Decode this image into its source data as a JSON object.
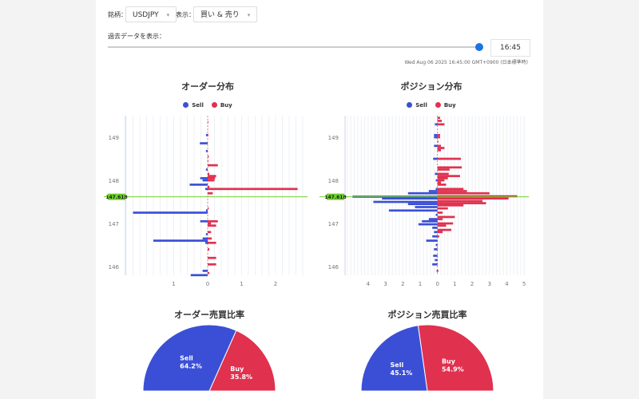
{
  "controls": {
    "symbol_label": "銘柄：",
    "symbol_value": "USDJPY",
    "display_label": "表示：",
    "display_value": "買い & 売り",
    "history_label": "過去データを表示：",
    "slider_position_fraction": 1.0,
    "time_value": "16:45",
    "timestamp": "Wed Aug 06 2025 16:45:00 GMT+0900 (日本標準時)"
  },
  "colors": {
    "sell": "#3b4fd6",
    "buy": "#e0314f",
    "current_price": "#6fd12a",
    "accent": "#1a73e8"
  },
  "chart_data": [
    {
      "type": "bar",
      "orientation": "horizontal",
      "title": "オーダー分布",
      "legend": [
        "Sell",
        "Buy"
      ],
      "legend_placement": "top",
      "current_price": "147.618",
      "y_ticks": [
        "149",
        "148",
        "147",
        "146"
      ],
      "x_ticks": [
        "1",
        "0",
        "1",
        "2"
      ],
      "x_tick_values": [
        -1,
        0,
        1,
        2
      ],
      "xlim": [
        -2.45,
        2.95
      ],
      "ylim": [
        145.8,
        149.5
      ],
      "series": [
        {
          "name": "Sell",
          "points": [
            [
              149.05,
              0.05
            ],
            [
              148.86,
              0.23
            ],
            [
              148.68,
              0.05
            ],
            [
              148.25,
              0.05
            ],
            [
              148.05,
              0.22
            ],
            [
              148.0,
              0.15
            ],
            [
              147.9,
              0.53
            ],
            [
              147.8,
              0.07
            ],
            [
              147.3,
              0.05
            ],
            [
              147.25,
              2.2
            ],
            [
              147.05,
              0.22
            ],
            [
              146.75,
              0.05
            ],
            [
              146.65,
              0.15
            ],
            [
              146.6,
              1.6
            ],
            [
              146.55,
              0.07
            ],
            [
              145.9,
              0.15
            ],
            [
              145.8,
              0.5
            ]
          ]
        },
        {
          "name": "Buy",
          "points": [
            [
              149.35,
              0.01
            ],
            [
              149.05,
              0.02
            ],
            [
              148.55,
              0.03
            ],
            [
              148.45,
              0.02
            ],
            [
              148.35,
              0.3
            ],
            [
              148.15,
              0.05
            ],
            [
              148.1,
              0.25
            ],
            [
              148.05,
              0.22
            ],
            [
              148.0,
              0.2
            ],
            [
              147.85,
              0.05
            ],
            [
              147.8,
              2.65
            ],
            [
              147.7,
              0.15
            ],
            [
              147.35,
              0.03
            ],
            [
              147.05,
              0.3
            ],
            [
              147.0,
              0.1
            ],
            [
              146.95,
              0.25
            ],
            [
              146.8,
              0.1
            ],
            [
              146.65,
              0.12
            ],
            [
              146.55,
              0.25
            ],
            [
              146.4,
              0.05
            ],
            [
              146.2,
              0.25
            ],
            [
              146.05,
              0.25
            ],
            [
              145.85,
              0.05
            ]
          ]
        }
      ]
    },
    {
      "type": "bar",
      "orientation": "horizontal",
      "title": "ポジション分布",
      "legend": [
        "Sell",
        "Buy"
      ],
      "legend_placement": "top",
      "current_price": "147.618",
      "y_ticks": [
        "149",
        "148",
        "147",
        "146"
      ],
      "x_ticks": [
        "4",
        "3",
        "2",
        "1",
        "0",
        "1",
        "2",
        "3",
        "4",
        "5"
      ],
      "x_tick_values": [
        -4,
        -3,
        -2,
        -1,
        0,
        1,
        2,
        3,
        4,
        5
      ],
      "xlim": [
        -5.3,
        5.2
      ],
      "ylim": [
        145.8,
        149.5
      ],
      "series": [
        {
          "name": "Sell",
          "points": [
            [
              149.3,
              0.15
            ],
            [
              149.05,
              0.2
            ],
            [
              149.0,
              0.2
            ],
            [
              148.8,
              0.2
            ],
            [
              148.5,
              0.25
            ],
            [
              148.15,
              0.15
            ],
            [
              148.0,
              0.1
            ],
            [
              147.8,
              0.1
            ],
            [
              147.75,
              0.5
            ],
            [
              147.7,
              1.7
            ],
            [
              147.62,
              4.9
            ],
            [
              147.58,
              3.2
            ],
            [
              147.5,
              3.7
            ],
            [
              147.45,
              1.7
            ],
            [
              147.38,
              1.3
            ],
            [
              147.3,
              2.8
            ],
            [
              147.2,
              0.1
            ],
            [
              147.1,
              0.5
            ],
            [
              147.05,
              0.9
            ],
            [
              146.98,
              1.1
            ],
            [
              146.9,
              0.3
            ],
            [
              146.8,
              0.2
            ],
            [
              146.7,
              0.3
            ],
            [
              146.6,
              0.65
            ],
            [
              146.5,
              0.1
            ],
            [
              146.4,
              0.2
            ],
            [
              146.25,
              0.25
            ],
            [
              146.15,
              0.15
            ],
            [
              146.05,
              0.3
            ],
            [
              145.9,
              0.05
            ]
          ]
        },
        {
          "name": "Buy",
          "points": [
            [
              149.45,
              0.15
            ],
            [
              149.38,
              0.25
            ],
            [
              149.3,
              0.4
            ],
            [
              149.05,
              0.15
            ],
            [
              149.0,
              0.15
            ],
            [
              148.9,
              0.05
            ],
            [
              148.8,
              0.2
            ],
            [
              148.75,
              0.4
            ],
            [
              148.7,
              0.2
            ],
            [
              148.5,
              1.35
            ],
            [
              148.3,
              1.4
            ],
            [
              148.25,
              0.7
            ],
            [
              148.15,
              0.65
            ],
            [
              148.1,
              1.3
            ],
            [
              148.05,
              0.6
            ],
            [
              148.0,
              0.4
            ],
            [
              147.95,
              0.2
            ],
            [
              147.9,
              0.5
            ],
            [
              147.8,
              1.5
            ],
            [
              147.75,
              1.7
            ],
            [
              147.7,
              3.0
            ],
            [
              147.63,
              4.6
            ],
            [
              147.58,
              4.1
            ],
            [
              147.52,
              2.6
            ],
            [
              147.47,
              2.8
            ],
            [
              147.42,
              1.5
            ],
            [
              147.35,
              0.6
            ],
            [
              147.25,
              0.3
            ],
            [
              147.15,
              1.0
            ],
            [
              147.1,
              0.3
            ],
            [
              147.0,
              0.9
            ],
            [
              146.95,
              0.5
            ],
            [
              146.85,
              0.8
            ],
            [
              146.8,
              0.3
            ],
            [
              146.7,
              0.1
            ],
            [
              145.9,
              0.05
            ]
          ]
        }
      ]
    },
    {
      "type": "pie",
      "title": "オーダー売買比率",
      "slices": [
        {
          "name": "Sell",
          "value": 64.2,
          "label": "64.2%"
        },
        {
          "name": "Buy",
          "value": 35.8,
          "label": "35.8%"
        }
      ]
    },
    {
      "type": "pie",
      "title": "ポジション売買比率",
      "slices": [
        {
          "name": "Sell",
          "value": 45.1,
          "label": "45.1%"
        },
        {
          "name": "Buy",
          "value": 54.9,
          "label": "54.9%"
        }
      ]
    }
  ]
}
